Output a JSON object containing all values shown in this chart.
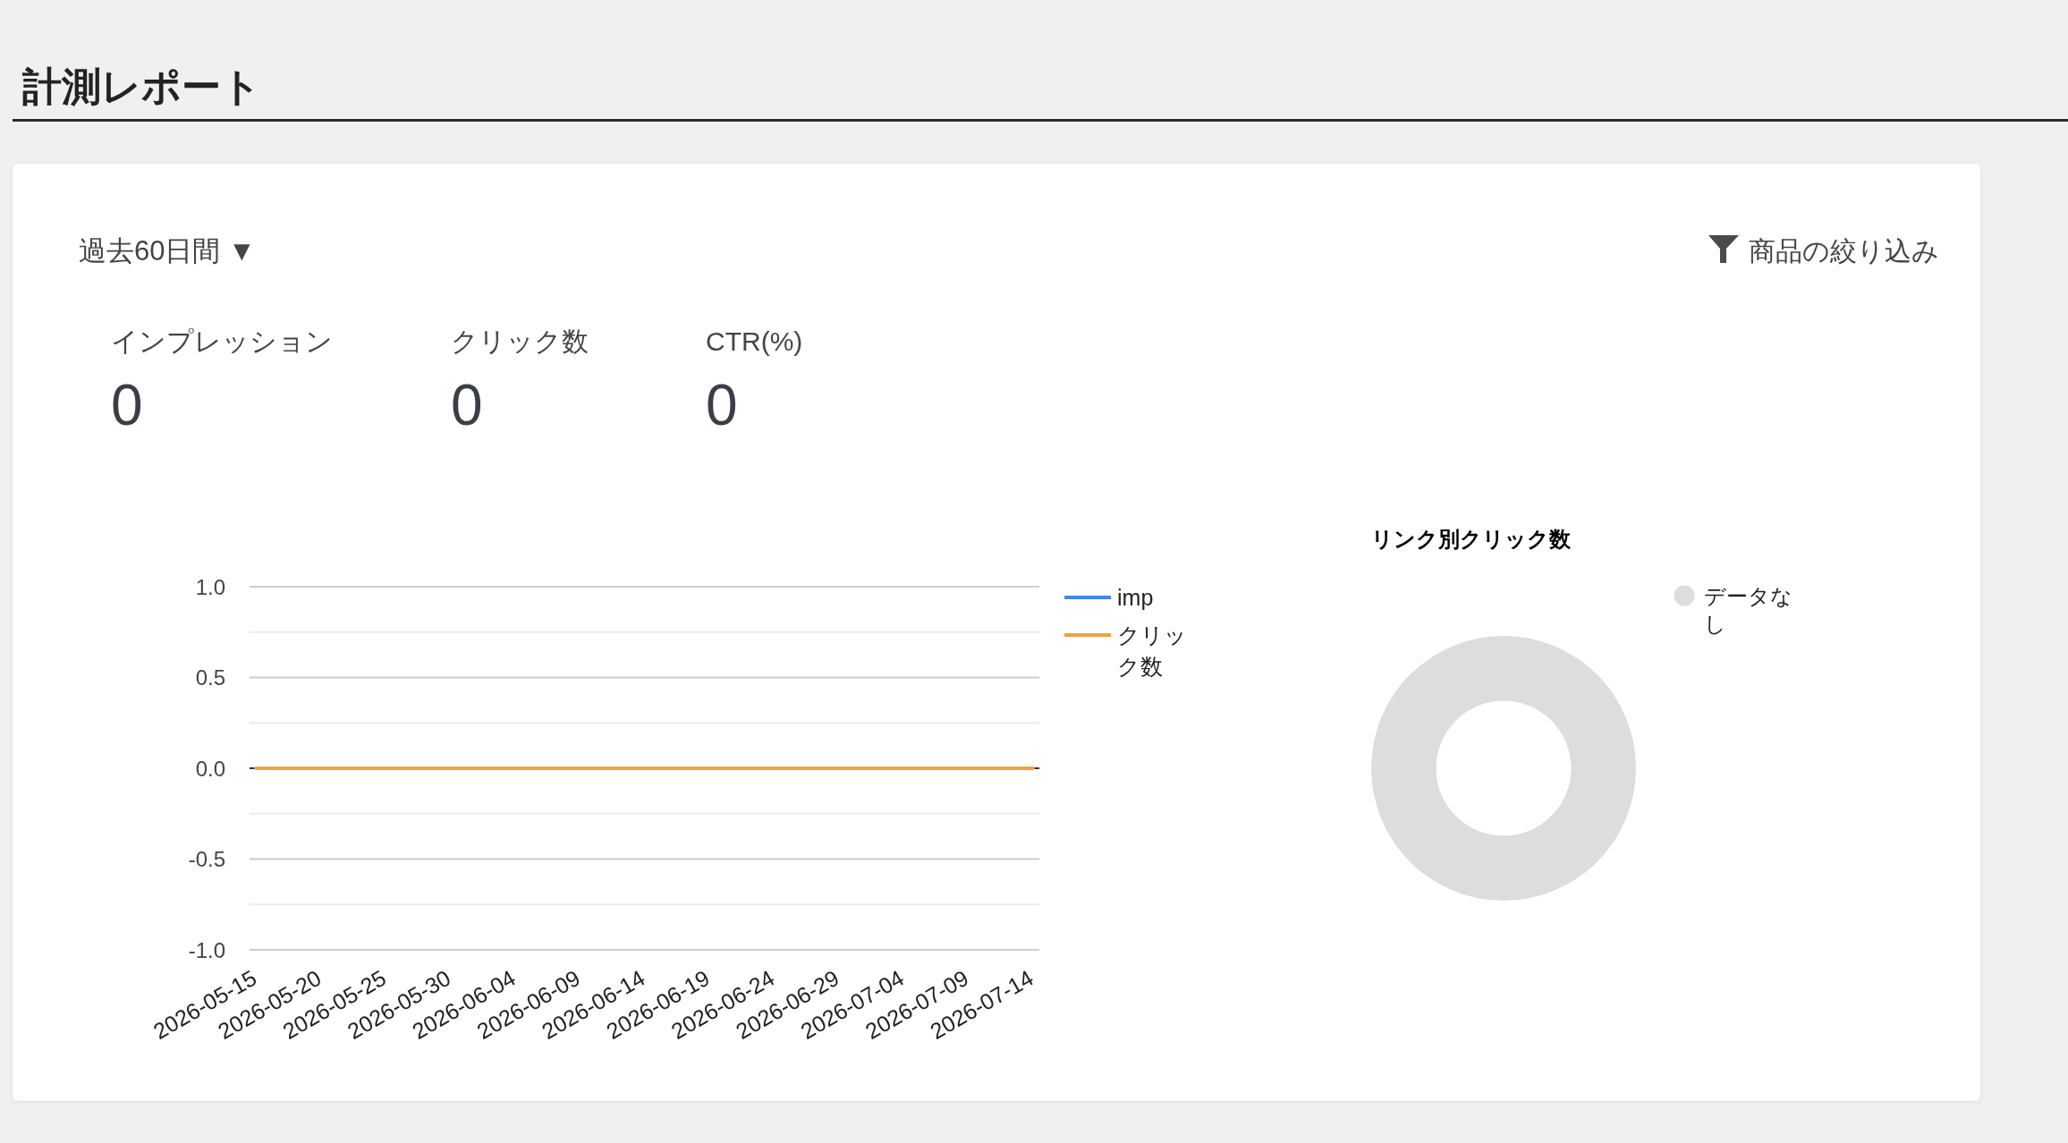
{
  "chart_data": [
    {
      "type": "other",
      "title": "計測レポート",
      "annotations": [
        "過去60日間 ▼",
        "商品の絞り込み"
      ],
      "categories": [
        "インプレッション",
        "クリック数",
        "CTR(%)"
      ],
      "values": [
        0,
        0,
        0
      ],
      "data_labels": true
    },
    {
      "type": "line",
      "categories": [
        "2026-05-15",
        null,
        null,
        null,
        null,
        "2026-05-20",
        null,
        null,
        null,
        null,
        "2026-05-25",
        null,
        null,
        null,
        null,
        "2026-05-30",
        null,
        null,
        null,
        null,
        "2026-06-04",
        null,
        null,
        null,
        null,
        "2026-06-09",
        null,
        null,
        null,
        null,
        "2026-06-14",
        null,
        null,
        null,
        null,
        "2026-06-19",
        null,
        null,
        null,
        null,
        "2026-06-24",
        null,
        null,
        null,
        null,
        "2026-06-29",
        null,
        null,
        null,
        null,
        "2026-07-04",
        null,
        null,
        null,
        null,
        "2026-07-09",
        null,
        null,
        null,
        null,
        "2026-07-14"
      ],
      "series": [
        {
          "name": "imp",
          "color": "#4285f4",
          "values": [
            null,
            null,
            null,
            null,
            null,
            null,
            null,
            null,
            null,
            null,
            null,
            null,
            null,
            null,
            null,
            null,
            null,
            null,
            null,
            null,
            null,
            null,
            null,
            null,
            null,
            null,
            null,
            null,
            null,
            null,
            null,
            null,
            null,
            null,
            null,
            null,
            null,
            null,
            null,
            null,
            null,
            null,
            null,
            null,
            null,
            null,
            null,
            null,
            null,
            null,
            null,
            null,
            null,
            null,
            null,
            null,
            null,
            null,
            null,
            null,
            null
          ]
        },
        {
          "name": "クリック数",
          "color": "#f4a13a",
          "values": [
            0,
            0,
            0,
            0,
            0,
            0,
            0,
            0,
            0,
            0,
            0,
            0,
            0,
            0,
            0,
            0,
            0,
            0,
            0,
            0,
            0,
            0,
            0,
            0,
            0,
            0,
            0,
            0,
            0,
            0,
            0,
            0,
            0,
            0,
            0,
            0,
            0,
            0,
            0,
            0,
            0,
            0,
            0,
            0,
            0,
            0,
            0,
            0,
            0,
            0,
            0,
            0,
            0,
            0,
            0,
            0,
            0,
            0,
            0,
            0,
            0
          ]
        }
      ],
      "ylim": [
        -1,
        1
      ],
      "yticks": [
        {
          "value": 1,
          "label": "1.0"
        },
        {
          "value": 0.75,
          "label": null
        },
        {
          "value": 0.5,
          "label": "0.5"
        },
        {
          "value": 0.25,
          "label": null
        },
        {
          "value": 0,
          "label": "0.0"
        },
        {
          "value": -0.25,
          "label": null
        },
        {
          "value": -0.5,
          "label": "-0.5"
        },
        {
          "value": -0.75,
          "label": null
        },
        {
          "value": -1,
          "label": "-1.0"
        }
      ],
      "grid": "y",
      "legend": "right"
    },
    {
      "type": "donut",
      "title": "リンク別クリック数",
      "categories": [
        "データなし"
      ],
      "values": [
        100
      ],
      "colors": [
        "#dddddd"
      ],
      "legend": "right"
    }
  ]
}
